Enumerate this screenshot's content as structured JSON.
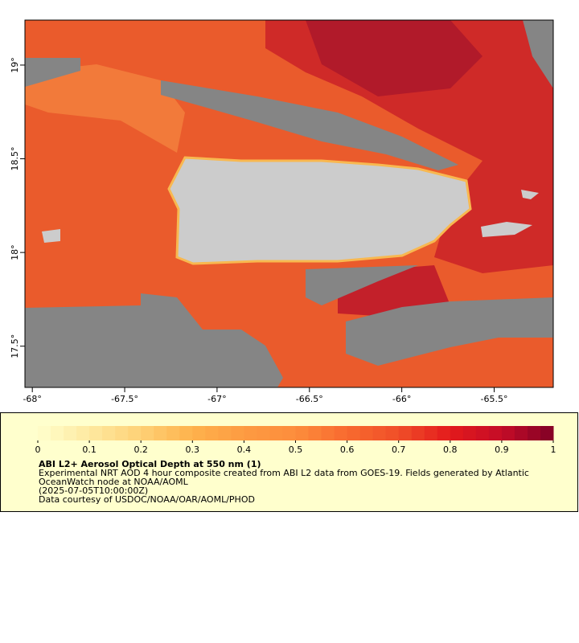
{
  "map": {
    "xlim": [
      -68.04,
      -65.18
    ],
    "ylim": [
      17.28,
      19.24
    ],
    "xticks": [
      {
        "value": -68,
        "label": "-68°"
      },
      {
        "value": -67.5,
        "label": "-67.5°"
      },
      {
        "value": -67,
        "label": "-67°"
      },
      {
        "value": -66.5,
        "label": "-66.5°"
      },
      {
        "value": -66,
        "label": "-66°"
      },
      {
        "value": -65.5,
        "label": "-65.5°"
      }
    ],
    "yticks": [
      {
        "value": 17.5,
        "label": "17.5°"
      },
      {
        "value": 18,
        "label": "18°"
      },
      {
        "value": 18.5,
        "label": "18.5°"
      },
      {
        "value": 19,
        "label": "19°"
      }
    ]
  },
  "colorbar": {
    "range": [
      0,
      1
    ],
    "ticks": [
      0,
      0.1,
      0.2,
      0.3,
      0.4,
      0.5,
      0.6,
      0.7,
      0.8,
      0.9,
      1
    ],
    "colors": [
      "#ffffcc",
      "#fee9a0",
      "#fed176",
      "#feb24c",
      "#fd9b42",
      "#fd8d3c",
      "#f86a2f",
      "#f04e28",
      "#e31a1c",
      "#c40c27",
      "#800026"
    ]
  },
  "legend": {
    "title": "ABI L2+ Aerosol Optical Depth at 550 nm (1)",
    "lines": [
      "Experimental NRT AOD 4 hour composite created from ABI L2 data from GOES-19. Fields generated by Atlantic",
      "OceanWatch node at NOAA/AOML",
      "(2025-07-05T10:00:00Z)",
      "Data courtesy of USDOC/NOAA/OAR/AOML/PHOD"
    ]
  }
}
